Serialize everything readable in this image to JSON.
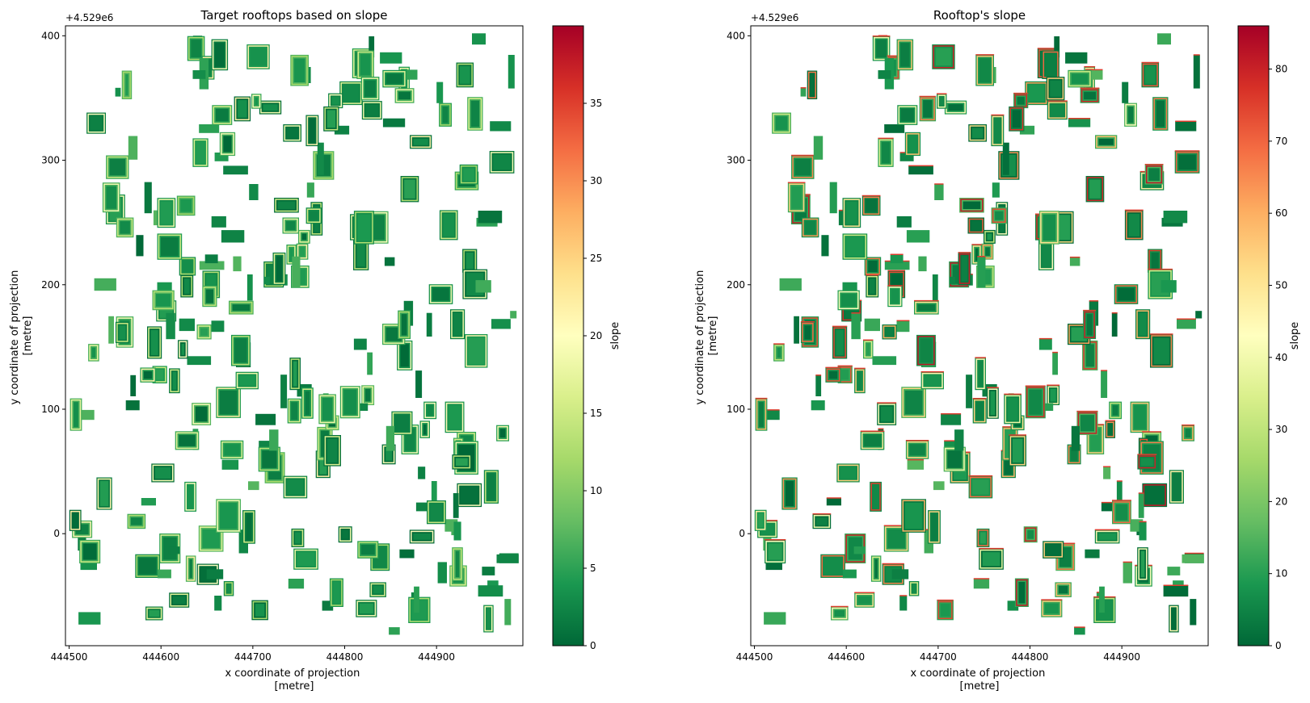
{
  "chart_data": [
    {
      "type": "heatmap",
      "title": "Target rooftops based on slope",
      "xlabel": [
        "x coordinate of projection",
        "[metre]"
      ],
      "ylabel": [
        "y coordinate of projection",
        "[metre]"
      ],
      "y_offset_text": "+4.529e6",
      "xlim": [
        444496,
        444994
      ],
      "ylim": [
        -90,
        408
      ],
      "x_ticks": [
        444500,
        444600,
        444700,
        444800,
        444900
      ],
      "y_ticks": [
        0,
        100,
        200,
        300,
        400
      ],
      "colorbar": {
        "label": "slope",
        "colormap": "RdYlGn_r",
        "range": [
          0,
          40
        ],
        "ticks": [
          0,
          5,
          10,
          15,
          20,
          25,
          30,
          35
        ]
      }
    },
    {
      "type": "heatmap",
      "title": "Rooftop's slope",
      "xlabel": [
        "x coordinate of projection",
        "[metre]"
      ],
      "ylabel": [
        "y coordinate of projection",
        "[metre]"
      ],
      "y_offset_text": "+4.529e6",
      "xlim": [
        444496,
        444994
      ],
      "ylim": [
        -90,
        408
      ],
      "x_ticks": [
        444500,
        444600,
        444700,
        444800,
        444900
      ],
      "y_ticks": [
        0,
        100,
        200,
        300,
        400
      ],
      "colorbar": {
        "label": "slope",
        "colormap": "RdYlGn_r",
        "range": [
          0,
          86
        ],
        "ticks": [
          0,
          10,
          20,
          30,
          40,
          50,
          60,
          70,
          80
        ]
      }
    }
  ],
  "colors": {
    "cmap_stops": [
      "#006837",
      "#1a9850",
      "#66bd63",
      "#a6d96a",
      "#d9ef8b",
      "#ffffbf",
      "#fee08b",
      "#fdae61",
      "#f46d43",
      "#d73027",
      "#a50026"
    ],
    "axis": "#000000",
    "background": "#ffffff"
  }
}
